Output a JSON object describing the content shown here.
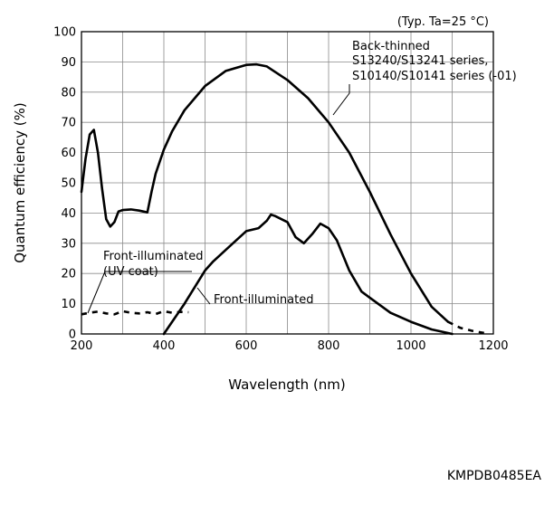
{
  "chart_data": {
    "type": "line",
    "condition": "(Typ. Ta=25 °C)",
    "xlabel": "Wavelength (nm)",
    "ylabel": "Quantum efficiency (%)",
    "xlim": [
      200,
      1200
    ],
    "ylim": [
      0,
      100
    ],
    "xticks": [
      200,
      400,
      600,
      800,
      1000,
      1200
    ],
    "yticks": [
      0,
      10,
      20,
      30,
      40,
      50,
      60,
      70,
      80,
      90,
      100
    ],
    "grid": true,
    "series": [
      {
        "name": "Back-thinned S13240/S13241 series, S10140/S10141 series (-01)",
        "label_lines": [
          "Back-thinned",
          "S13240/S13241 series,",
          "S10140/S10141 series (-01)"
        ],
        "style": "solid",
        "x": [
          200,
          210,
          220,
          230,
          240,
          250,
          260,
          270,
          280,
          290,
          300,
          320,
          340,
          360,
          370,
          380,
          400,
          420,
          450,
          500,
          550,
          600,
          625,
          650,
          700,
          750,
          800,
          850,
          900,
          950,
          1000,
          1050,
          1090
        ],
        "y": [
          47,
          58,
          66,
          67.5,
          60,
          48,
          38,
          35.5,
          37,
          40.5,
          41,
          41.2,
          40.8,
          40.2,
          47,
          53,
          61,
          67,
          74,
          82,
          87,
          89,
          89.2,
          88.5,
          84,
          78,
          70,
          60,
          47,
          33,
          20,
          9,
          4
        ]
      },
      {
        "name": "Back-thinned extension (dashed)",
        "style": "dashed",
        "x": [
          1090,
          1120,
          1150,
          1190
        ],
        "y": [
          4,
          2,
          1,
          0
        ]
      },
      {
        "name": "Front-illuminated",
        "label_lines": [
          "Front-illuminated"
        ],
        "style": "solid",
        "x": [
          400,
          450,
          500,
          520,
          560,
          600,
          630,
          650,
          660,
          670,
          700,
          720,
          740,
          760,
          780,
          800,
          820,
          850,
          880,
          900,
          950,
          1000,
          1050,
          1100
        ],
        "y": [
          0,
          10,
          21,
          24,
          29,
          34,
          35,
          37.5,
          39.5,
          39,
          37,
          32,
          30,
          33,
          36.5,
          35,
          31,
          21,
          14,
          12,
          7,
          4,
          1.5,
          0
        ]
      },
      {
        "name": "Front-illuminated (UV coat)",
        "label_lines": [
          "Front-illuminated",
          "(UV coat)"
        ],
        "style": "dashed",
        "x": [
          200,
          220,
          240,
          260,
          280,
          300,
          320,
          340,
          360,
          380,
          400,
          420,
          440,
          460
        ],
        "y": [
          6.5,
          7,
          7.4,
          6.8,
          6.5,
          7.5,
          7,
          6.8,
          7.2,
          6.6,
          7.5,
          7,
          7.3,
          7.2
        ]
      }
    ],
    "footnote": "KMPDB0485EA"
  }
}
